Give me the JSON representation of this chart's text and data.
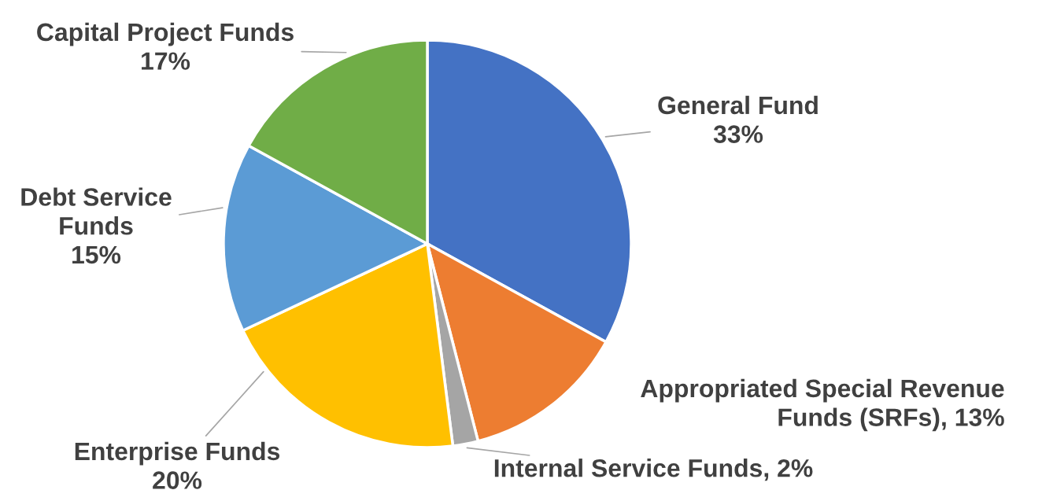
{
  "chart_data": {
    "type": "pie",
    "categories": [
      "General Fund",
      "Appropriated Special Revenue Funds (SRFs)",
      "Internal Service Funds",
      "Enterprise Funds",
      "Debt Service Funds",
      "Capital Project Funds"
    ],
    "values": [
      33,
      13,
      2,
      20,
      15,
      17
    ],
    "colors": [
      "#4472c4",
      "#ed7d31",
      "#a5a5a5",
      "#ffc000",
      "#5b9bd5",
      "#70ad47"
    ],
    "value_labels": [
      "33%",
      "13%",
      "2%",
      "20%",
      "15%",
      "17%"
    ],
    "legend": false
  }
}
